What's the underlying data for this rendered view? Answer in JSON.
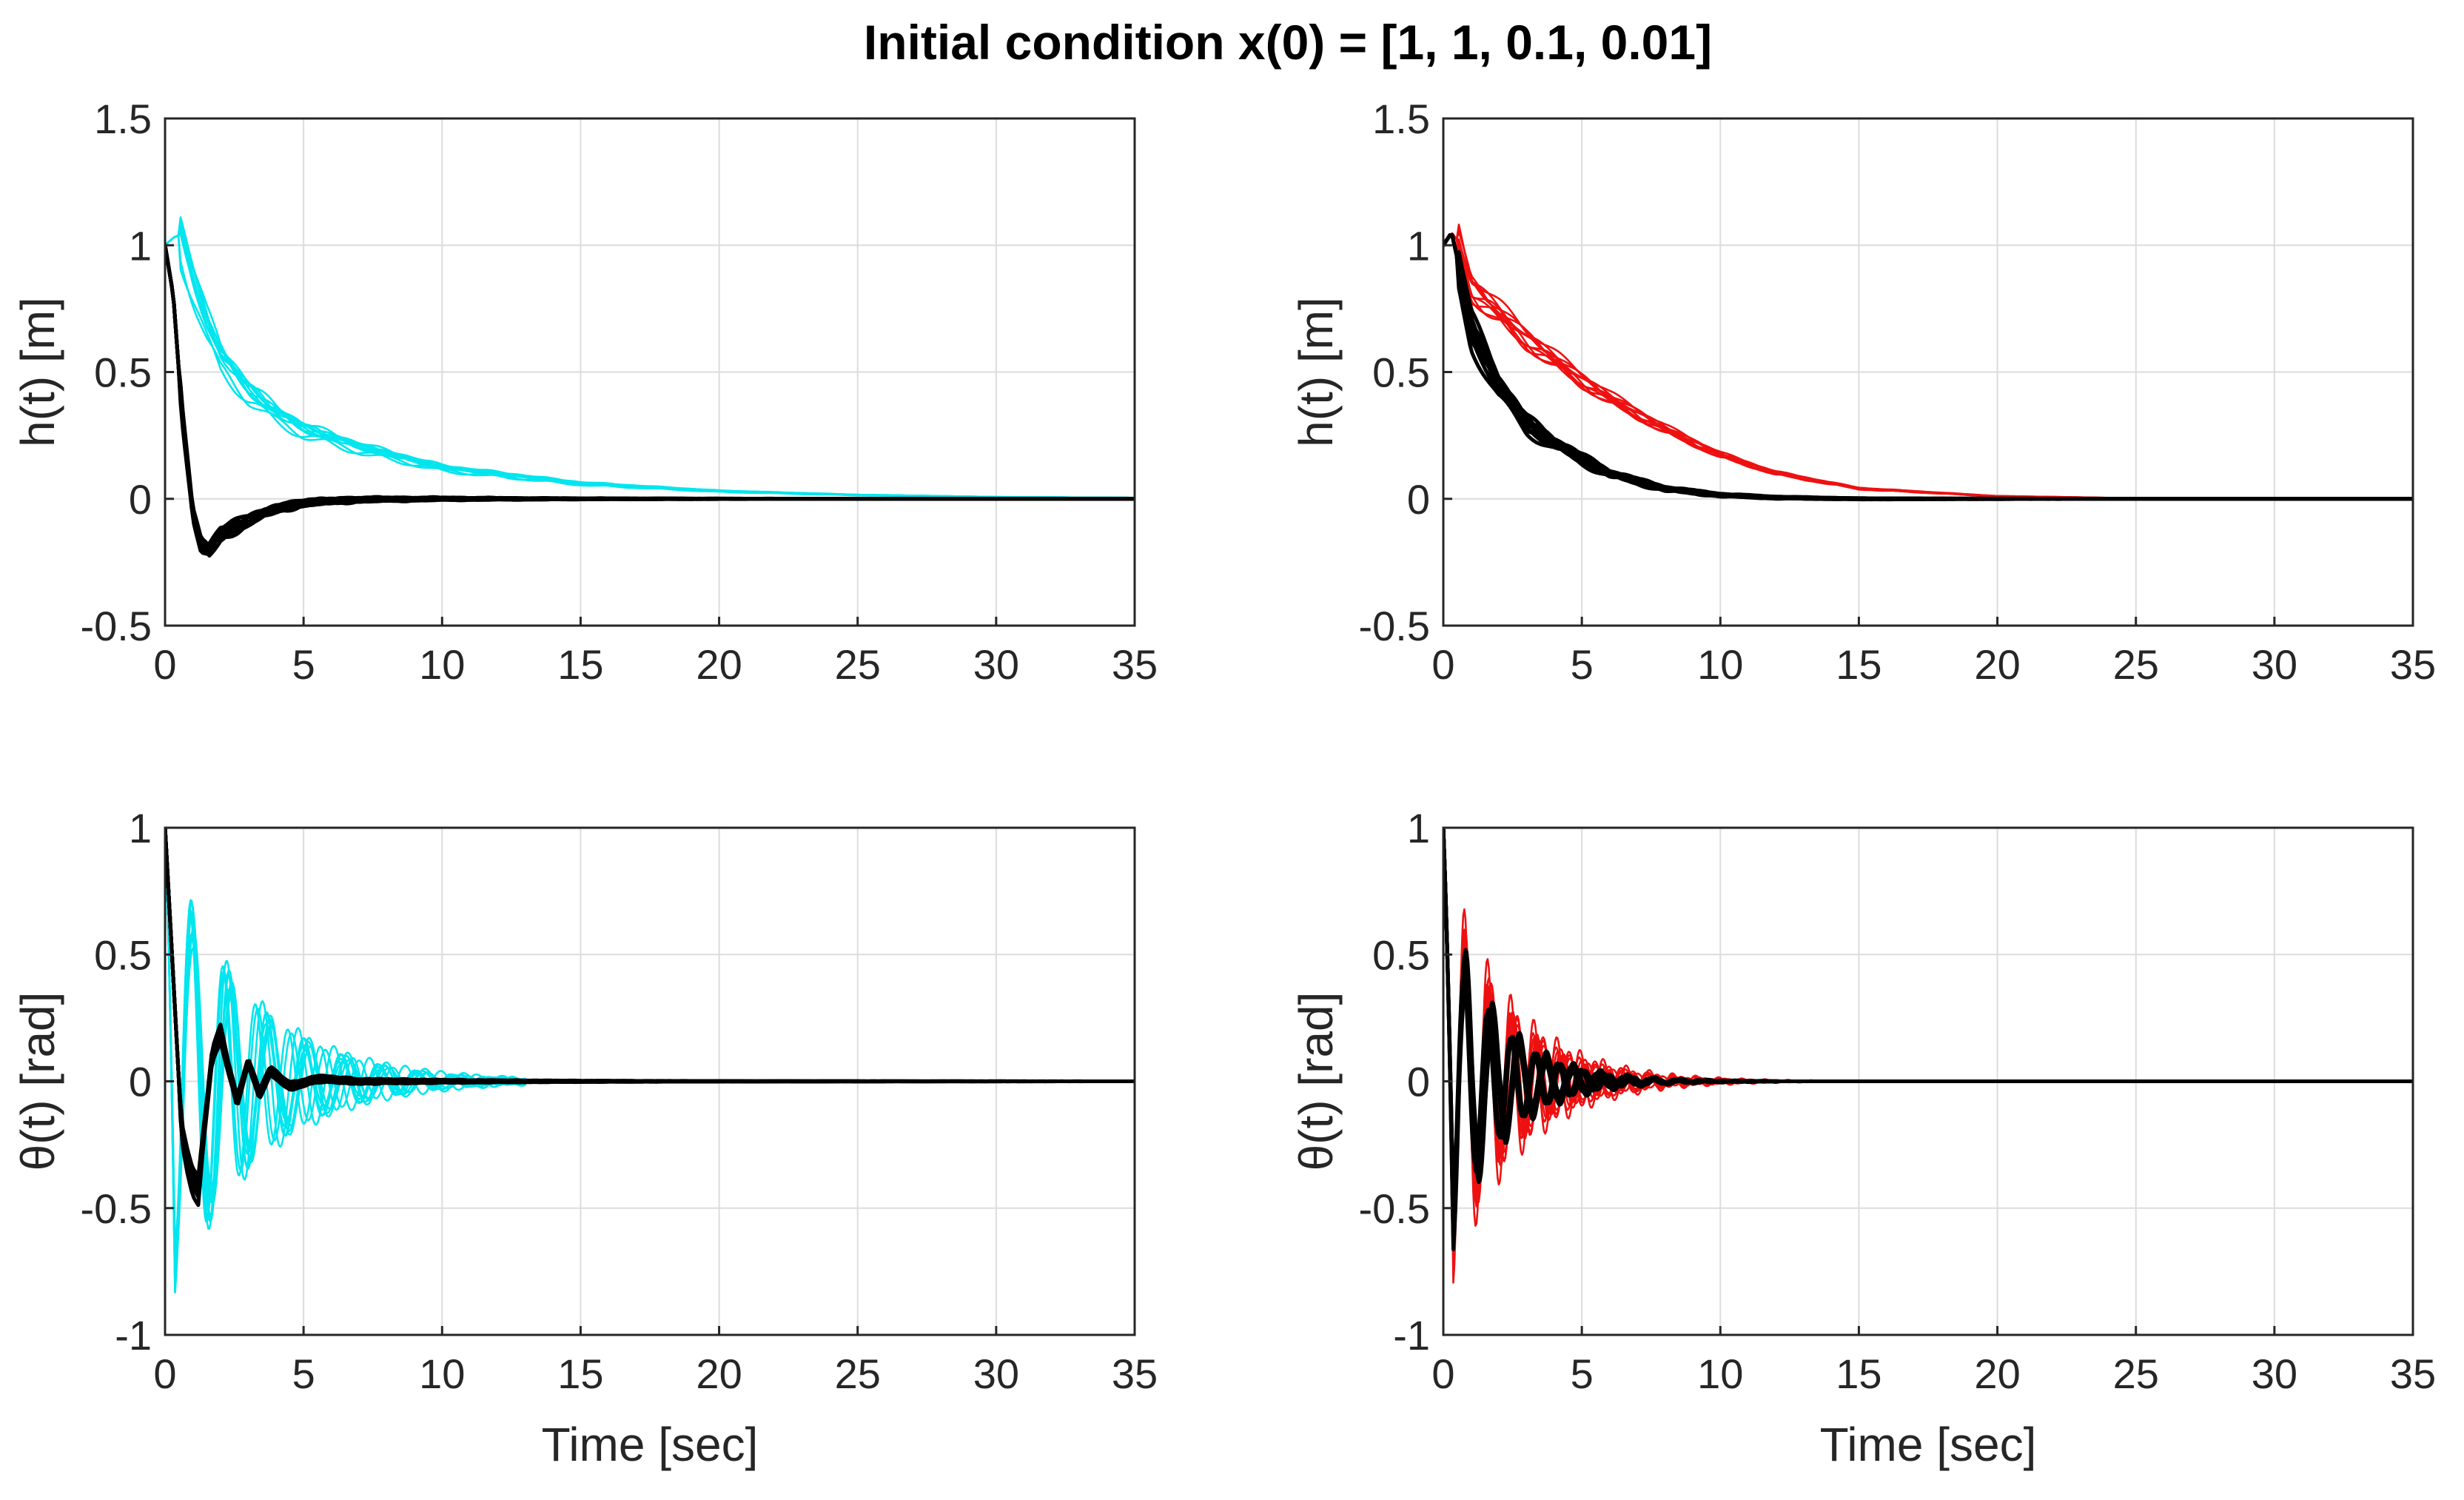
{
  "title": "Initial condition x(0) = [1, 1, 0.1, 0.01]",
  "chart_data": [
    {
      "type": "line",
      "panel": "top-left",
      "xlabel": "",
      "ylabel": "h(t) [m]",
      "xlim": [
        0,
        35
      ],
      "ylim": [
        -0.5,
        1.5
      ],
      "xticks": [
        0,
        5,
        10,
        15,
        20,
        25,
        30,
        35
      ],
      "xtick_labels": [
        "0",
        "5",
        "10",
        "15",
        "20",
        "25",
        "30",
        "35"
      ],
      "yticks": [
        -0.5,
        0,
        0.5,
        1,
        1.5
      ],
      "ytick_labels": [
        "-0.5",
        "0",
        "0.5",
        "1",
        "1.5"
      ],
      "grid": true,
      "series": [
        {
          "name": "cyan runs",
          "color": "#00e5ee",
          "count": 10,
          "x": [
            0,
            0.3,
            0.5,
            1,
            1.5,
            2,
            3,
            4,
            5,
            7,
            10,
            15,
            20,
            25,
            30,
            35
          ],
          "y": [
            1,
            1.03,
            1.04,
            0.85,
            0.68,
            0.55,
            0.42,
            0.33,
            0.27,
            0.2,
            0.12,
            0.06,
            0.03,
            0.015,
            0.007,
            0.004
          ]
        },
        {
          "name": "black runs",
          "color": "#000000",
          "count": 10,
          "x": [
            0,
            0.3,
            0.6,
            1,
            1.3,
            1.6,
            2,
            2.5,
            3,
            4,
            5,
            7,
            10,
            35
          ],
          "y": [
            1,
            0.8,
            0.35,
            -0.05,
            -0.18,
            -0.2,
            -0.14,
            -0.11,
            -0.08,
            -0.04,
            -0.015,
            -0.003,
            0,
            0
          ]
        }
      ]
    },
    {
      "type": "line",
      "panel": "top-right",
      "xlabel": "",
      "ylabel": "h(t) [m]",
      "xlim": [
        0,
        35
      ],
      "ylim": [
        -0.5,
        1.5
      ],
      "xticks": [
        0,
        5,
        10,
        15,
        20,
        25,
        30,
        35
      ],
      "xtick_labels": [
        "0",
        "5",
        "10",
        "15",
        "20",
        "25",
        "30",
        "35"
      ],
      "yticks": [
        -0.5,
        0,
        0.5,
        1,
        1.5
      ],
      "ytick_labels": [
        "-0.5",
        "0",
        "0.5",
        "1",
        "1.5"
      ],
      "grid": true,
      "series": [
        {
          "name": "red runs",
          "color": "#ee1111",
          "count": 10,
          "x": [
            0,
            0.3,
            0.5,
            1,
            2,
            3,
            4,
            5,
            6,
            8,
            10,
            12,
            15,
            20,
            25,
            30,
            35
          ],
          "y": [
            1,
            1.05,
            1.02,
            0.82,
            0.72,
            0.62,
            0.54,
            0.46,
            0.39,
            0.27,
            0.17,
            0.1,
            0.04,
            0.01,
            0.002,
            0,
            0
          ]
        },
        {
          "name": "black runs",
          "color": "#000000",
          "count": 10,
          "x": [
            0,
            0.3,
            0.5,
            1,
            2,
            3,
            4,
            5,
            6,
            8,
            10,
            12,
            15,
            35
          ],
          "y": [
            1,
            1.05,
            0.95,
            0.68,
            0.45,
            0.3,
            0.22,
            0.16,
            0.1,
            0.04,
            0.015,
            0.005,
            0,
            0
          ]
        }
      ]
    },
    {
      "type": "line",
      "panel": "bottom-left",
      "xlabel": "Time [sec]",
      "ylabel": "θ(t) [rad]",
      "xlim": [
        0,
        35
      ],
      "ylim": [
        -1,
        1
      ],
      "xticks": [
        0,
        5,
        10,
        15,
        20,
        25,
        30,
        35
      ],
      "xtick_labels": [
        "0",
        "5",
        "10",
        "15",
        "20",
        "25",
        "30",
        "35"
      ],
      "yticks": [
        -1,
        -0.5,
        0,
        0.5,
        1
      ],
      "ytick_labels": [
        "-1",
        "-0.5",
        "0",
        "0.5",
        "1"
      ],
      "grid": true,
      "series": [
        {
          "name": "cyan runs",
          "color": "#00e5ee",
          "count": 10,
          "type": "damped-oscillation",
          "start": 1,
          "amplitude": 0.8,
          "period": 1.3,
          "decay": 0.33,
          "duration": 13
        },
        {
          "name": "black runs",
          "color": "#000000",
          "count": 10,
          "x": [
            0,
            0.3,
            0.6,
            0.8,
            1,
            1.2,
            1.4,
            1.7,
            2,
            2.3,
            2.6,
            3,
            3.4,
            3.8,
            4.5,
            5.5,
            7,
            10,
            35
          ],
          "y": [
            1,
            0.4,
            -0.2,
            -0.3,
            -0.38,
            -0.42,
            -0.2,
            0.1,
            0.18,
            0.05,
            -0.08,
            0.08,
            -0.05,
            0.04,
            -0.02,
            0.01,
            0,
            0,
            0
          ]
        }
      ]
    },
    {
      "type": "line",
      "panel": "bottom-right",
      "xlabel": "Time [sec]",
      "ylabel": "θ(t) [rad]",
      "xlim": [
        0,
        35
      ],
      "ylim": [
        -1,
        1
      ],
      "xticks": [
        0,
        5,
        10,
        15,
        20,
        25,
        30,
        35
      ],
      "xtick_labels": [
        "0",
        "5",
        "10",
        "15",
        "20",
        "25",
        "30",
        "35"
      ],
      "yticks": [
        -1,
        -0.5,
        0,
        0.5,
        1
      ],
      "ytick_labels": [
        "-1",
        "-0.5",
        "0",
        "0.5",
        "1"
      ],
      "grid": true,
      "series": [
        {
          "name": "red runs",
          "color": "#ee1111",
          "count": 10,
          "type": "damped-oscillation",
          "start": 1,
          "amplitude": 0.75,
          "period": 0.9,
          "decay": 0.45,
          "duration": 16
        },
        {
          "name": "black runs",
          "color": "#000000",
          "count": 10,
          "type": "damped-oscillation",
          "start": 1,
          "amplitude": 0.6,
          "period": 0.9,
          "decay": 0.55,
          "duration": 12
        }
      ]
    }
  ]
}
